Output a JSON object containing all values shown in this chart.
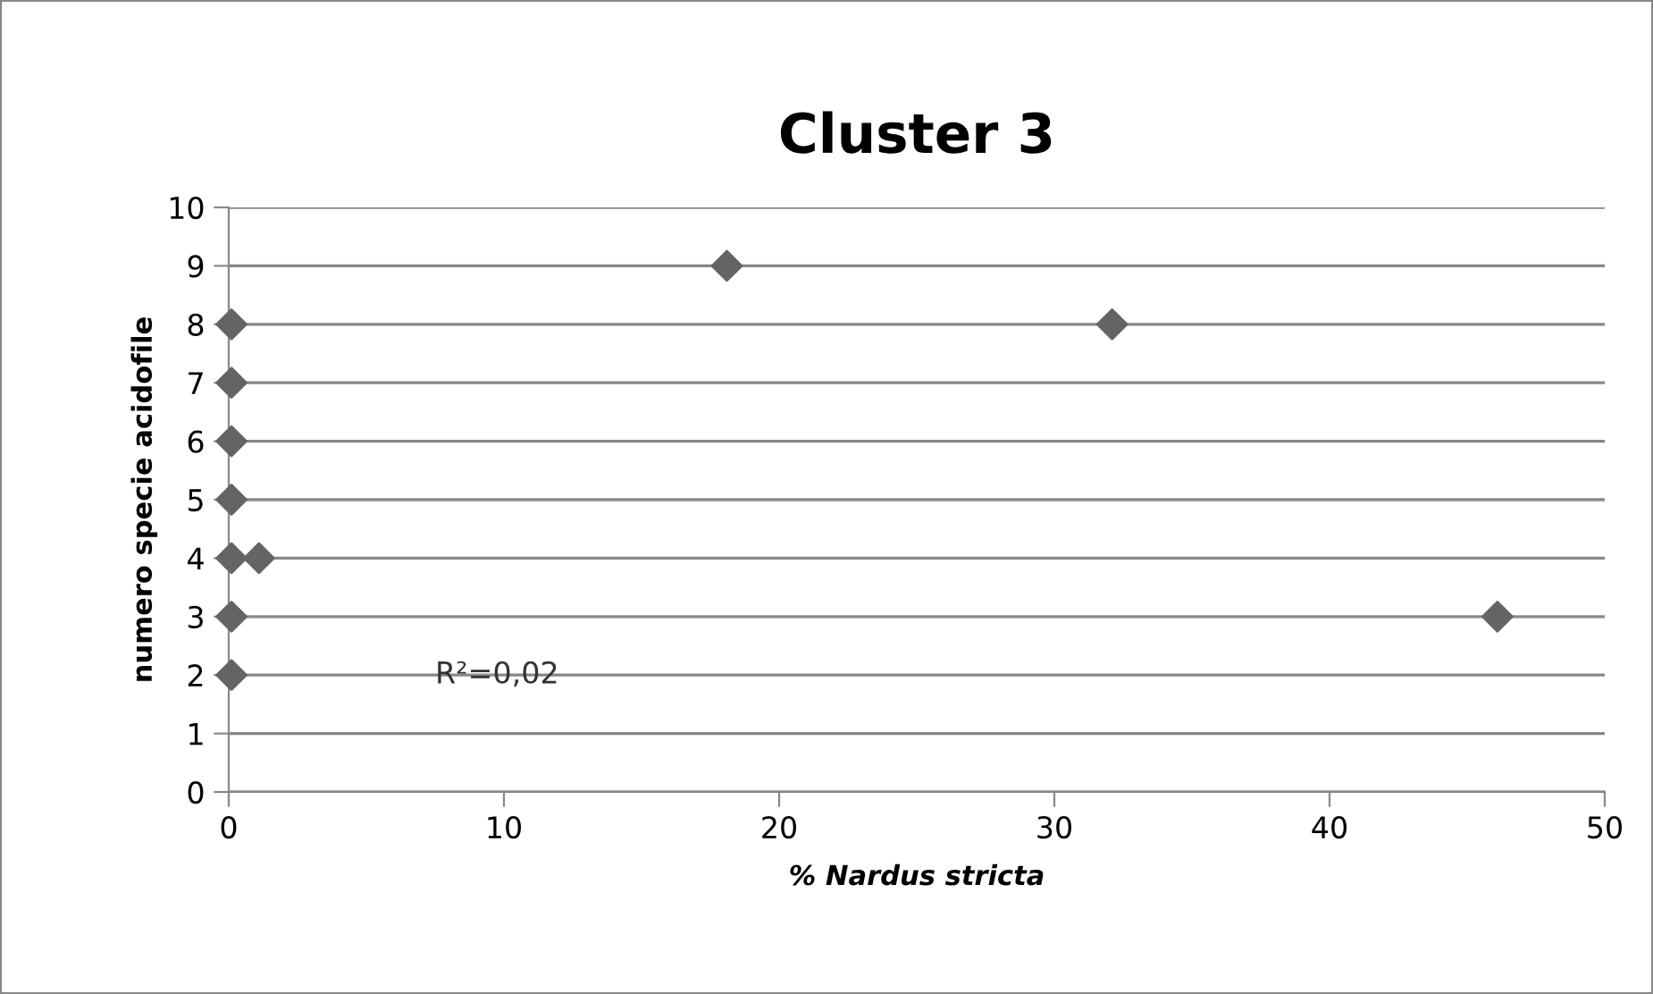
{
  "chart_data": {
    "type": "scatter",
    "title": "Cluster 3",
    "xlabel": "% Nardus stricta",
    "ylabel": "numero specie acidofile",
    "annotations": [
      "R²=0,02"
    ],
    "series": [
      {
        "color": "#646464",
        "x": [
          0.1,
          0.1,
          0.1,
          0.1,
          0.1,
          0.1,
          0.1,
          1.1,
          18.1,
          32.1,
          46.1
        ],
        "values": [
          2,
          3,
          4,
          5,
          6,
          7,
          8,
          4,
          9,
          8,
          3
        ]
      }
    ],
    "xlim": [
      0,
      50
    ],
    "xticks": [
      0,
      10,
      20,
      30,
      40,
      50
    ],
    "ylim": [
      0,
      10
    ],
    "yticks": [
      0,
      1,
      2,
      3,
      4,
      5,
      6,
      7,
      8,
      9,
      10
    ],
    "grid": "y",
    "legend": false,
    "marker": "diamond"
  }
}
